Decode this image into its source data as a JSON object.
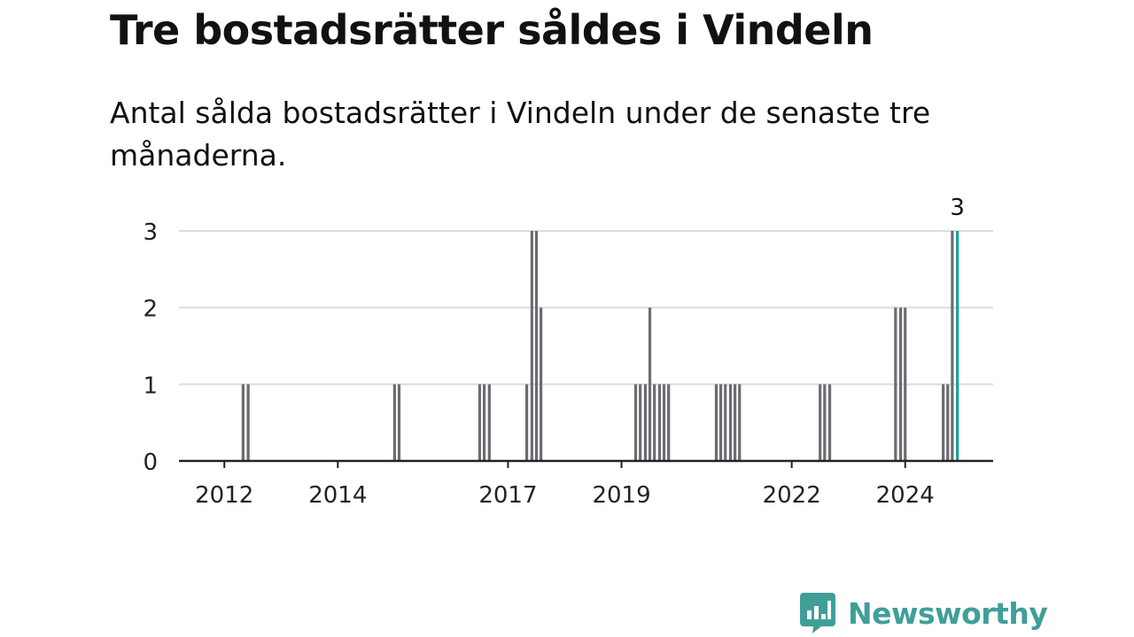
{
  "title": "Tre bostadsrätter såldes i Vindeln",
  "subtitle": "Antal sålda bostadsrätter i Vindeln under de senaste tre månaderna.",
  "brand": {
    "name": "Newsworthy",
    "color": "#3f9f98",
    "icon": "newsworthy-logo-icon"
  },
  "chart_data": {
    "type": "bar",
    "ylim": [
      0,
      3
    ],
    "yticks": [
      "0",
      "1",
      "2",
      "3"
    ],
    "grid": true,
    "bar_color": "#6d6b72",
    "highlight_color": "#15a39a",
    "xticks": [
      {
        "label": "2012",
        "x": 2012.0
      },
      {
        "label": "2014",
        "x": 2014.0
      },
      {
        "label": "2017",
        "x": 2017.0
      },
      {
        "label": "2019",
        "x": 2019.0
      },
      {
        "label": "2022",
        "x": 2022.0
      },
      {
        "label": "2024",
        "x": 2024.0
      }
    ],
    "x": [
      2012.33,
      2012.42,
      2015.0,
      2015.08,
      2016.5,
      2016.58,
      2016.67,
      2017.33,
      2017.42,
      2017.5,
      2017.58,
      2019.25,
      2019.33,
      2019.42,
      2019.5,
      2019.58,
      2019.67,
      2019.75,
      2019.83,
      2020.67,
      2020.75,
      2020.83,
      2020.92,
      2021.0,
      2021.08,
      2022.5,
      2022.58,
      2022.67,
      2023.83,
      2023.92,
      2024.0,
      2024.67,
      2024.75,
      2024.83,
      2024.92
    ],
    "values": [
      1,
      1,
      1,
      1,
      1,
      1,
      1,
      1,
      3,
      3,
      2,
      1,
      1,
      1,
      2,
      1,
      1,
      1,
      1,
      1,
      1,
      1,
      1,
      1,
      1,
      1,
      1,
      1,
      2,
      2,
      2,
      1,
      1,
      3,
      3
    ],
    "highlight_index": 34,
    "highlight_label": "3"
  }
}
